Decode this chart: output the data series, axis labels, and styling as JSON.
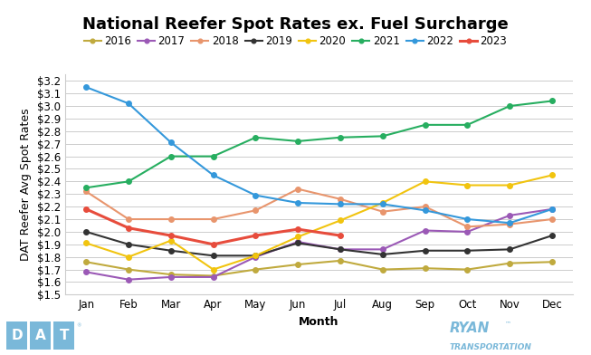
{
  "title": "National Reefer Spot Rates ex. Fuel Surcharge",
  "xlabel": "Month",
  "ylabel": "DAT Reefer Avg Spot Rates",
  "months": [
    "Jan",
    "Feb",
    "Mar",
    "Apr",
    "May",
    "Jun",
    "Jul",
    "Aug",
    "Sep",
    "Oct",
    "Nov",
    "Dec"
  ],
  "ylim": [
    1.5,
    3.25
  ],
  "yticks": [
    1.5,
    1.6,
    1.7,
    1.8,
    1.9,
    2.0,
    2.1,
    2.2,
    2.3,
    2.4,
    2.5,
    2.6,
    2.7,
    2.8,
    2.9,
    3.0,
    3.1,
    3.2
  ],
  "series": [
    {
      "label": "2016",
      "color": "#c0aa3e",
      "marker": "o",
      "linewidth": 1.5,
      "values": [
        1.76,
        1.7,
        1.66,
        1.65,
        1.7,
        1.74,
        1.77,
        1.7,
        1.71,
        1.7,
        1.75,
        1.76
      ]
    },
    {
      "label": "2017",
      "color": "#9b59b6",
      "marker": "o",
      "linewidth": 1.5,
      "values": [
        1.68,
        1.62,
        1.64,
        1.64,
        1.8,
        1.92,
        1.86,
        1.86,
        2.01,
        2.0,
        2.13,
        2.18
      ]
    },
    {
      "label": "2018",
      "color": "#e8956d",
      "marker": "o",
      "linewidth": 1.5,
      "values": [
        2.32,
        2.1,
        2.1,
        2.1,
        2.17,
        2.34,
        2.26,
        2.16,
        2.2,
        2.04,
        2.06,
        2.1
      ]
    },
    {
      "label": "2019",
      "color": "#333333",
      "marker": "o",
      "linewidth": 1.5,
      "values": [
        2.0,
        1.9,
        1.85,
        1.81,
        1.81,
        1.91,
        1.86,
        1.82,
        1.85,
        1.85,
        1.86,
        1.97
      ]
    },
    {
      "label": "2020",
      "color": "#f1c40f",
      "marker": "o",
      "linewidth": 1.5,
      "values": [
        1.91,
        1.8,
        1.93,
        1.7,
        1.81,
        1.96,
        2.09,
        2.23,
        2.4,
        2.37,
        2.37,
        2.45
      ]
    },
    {
      "label": "2021",
      "color": "#27ae60",
      "marker": "o",
      "linewidth": 1.5,
      "values": [
        2.35,
        2.4,
        2.6,
        2.6,
        2.75,
        2.72,
        2.75,
        2.76,
        2.85,
        2.85,
        3.0,
        3.04
      ]
    },
    {
      "label": "2022",
      "color": "#3498db",
      "marker": "o",
      "linewidth": 1.5,
      "values": [
        3.15,
        3.02,
        2.71,
        2.45,
        2.29,
        2.23,
        2.22,
        2.22,
        2.17,
        2.1,
        2.07,
        2.18
      ]
    },
    {
      "label": "2023",
      "color": "#e74c3c",
      "marker": "o",
      "linewidth": 2.2,
      "values": [
        2.18,
        2.03,
        1.97,
        1.9,
        1.97,
        2.02,
        1.97,
        null,
        null,
        null,
        null,
        null
      ]
    }
  ],
  "background_color": "#ffffff",
  "grid_color": "#cccccc",
  "title_fontsize": 13,
  "legend_fontsize": 8.5,
  "axis_fontsize": 9,
  "tick_fontsize": 8.5,
  "dat_color": "#7ab8d9",
  "ryan_color": "#7ab8d9"
}
